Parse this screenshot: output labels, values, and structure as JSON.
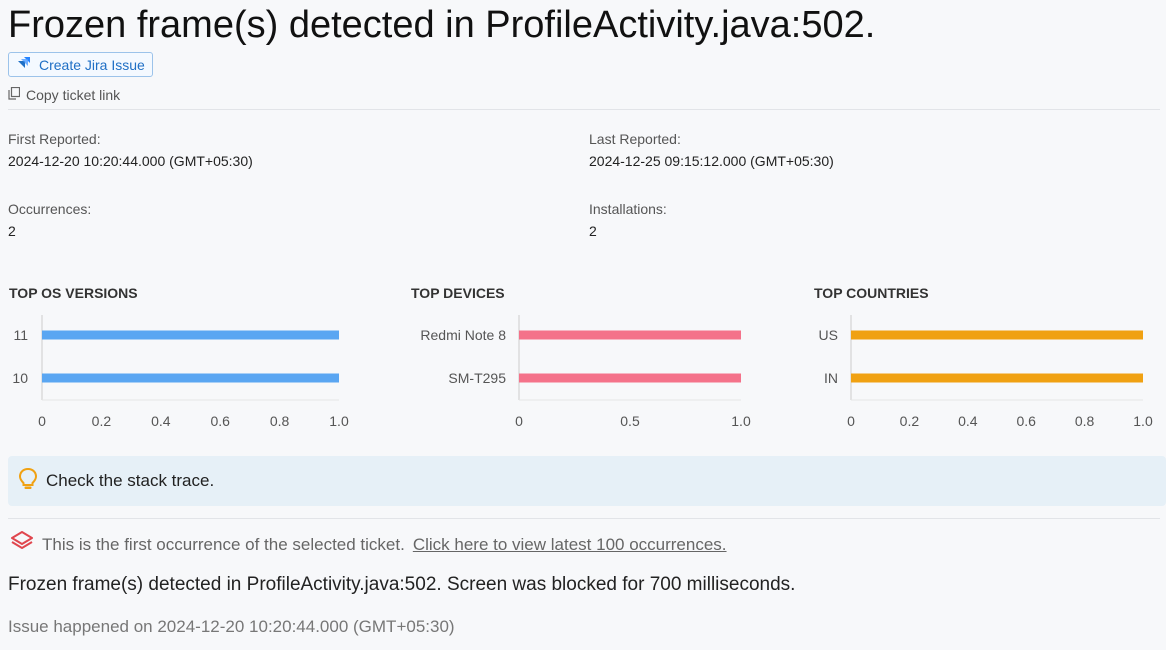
{
  "header": {
    "title": "Frozen frame(s) detected in ProfileActivity.java:502.",
    "jira_button_label": "Create Jira Issue",
    "copy_link_label": "Copy ticket link"
  },
  "meta": {
    "first_reported_label": "First Reported:",
    "first_reported_value": "2024-12-20 10:20:44.000 (GMT+05:30)",
    "last_reported_label": "Last Reported:",
    "last_reported_value": "2024-12-25 09:15:12.000 (GMT+05:30)",
    "occurrences_label": "Occurrences:",
    "occurrences_value": "2",
    "installations_label": "Installations:",
    "installations_value": "2"
  },
  "chart_data": [
    {
      "type": "bar",
      "orientation": "horizontal",
      "title": "TOP OS VERSIONS",
      "categories": [
        "11",
        "10"
      ],
      "values": [
        1,
        1
      ],
      "xlim": [
        0,
        1
      ],
      "xticks": [
        "0",
        "0.2",
        "0.4",
        "0.6",
        "0.8",
        "1.0"
      ],
      "color": "#5aa6f2"
    },
    {
      "type": "bar",
      "orientation": "horizontal",
      "title": "TOP DEVICES",
      "categories": [
        "Redmi Note 8",
        "SM-T295"
      ],
      "values": [
        1,
        1
      ],
      "xlim": [
        0,
        1
      ],
      "xticks": [
        "0",
        "0.5",
        "1.0"
      ],
      "color": "#f4728a"
    },
    {
      "type": "bar",
      "orientation": "horizontal",
      "title": "TOP COUNTRIES",
      "categories": [
        "US",
        "IN"
      ],
      "values": [
        1,
        1
      ],
      "xlim": [
        0,
        1
      ],
      "xticks": [
        "0",
        "0.2",
        "0.4",
        "0.6",
        "0.8",
        "1.0"
      ],
      "color": "#f0a112"
    }
  ],
  "hint": {
    "text": "Check the stack trace."
  },
  "occurrence": {
    "text": "This is the first occurrence of the selected ticket.",
    "link": "Click here to view latest 100 occurrences."
  },
  "message": "Frozen frame(s) detected in ProfileActivity.java:502. Screen was blocked for 700 milliseconds.",
  "happened": "Issue happened on 2024-12-20 10:20:44.000 (GMT+05:30)",
  "colors": {
    "jira_blue": "#1f6fc5",
    "bulb_orange": "#f0a112",
    "layers_red": "#e0464e"
  },
  "icons": {
    "jira": "jira-icon",
    "copy": "copy-icon",
    "bulb": "lightbulb-icon",
    "layers": "layers-icon"
  }
}
